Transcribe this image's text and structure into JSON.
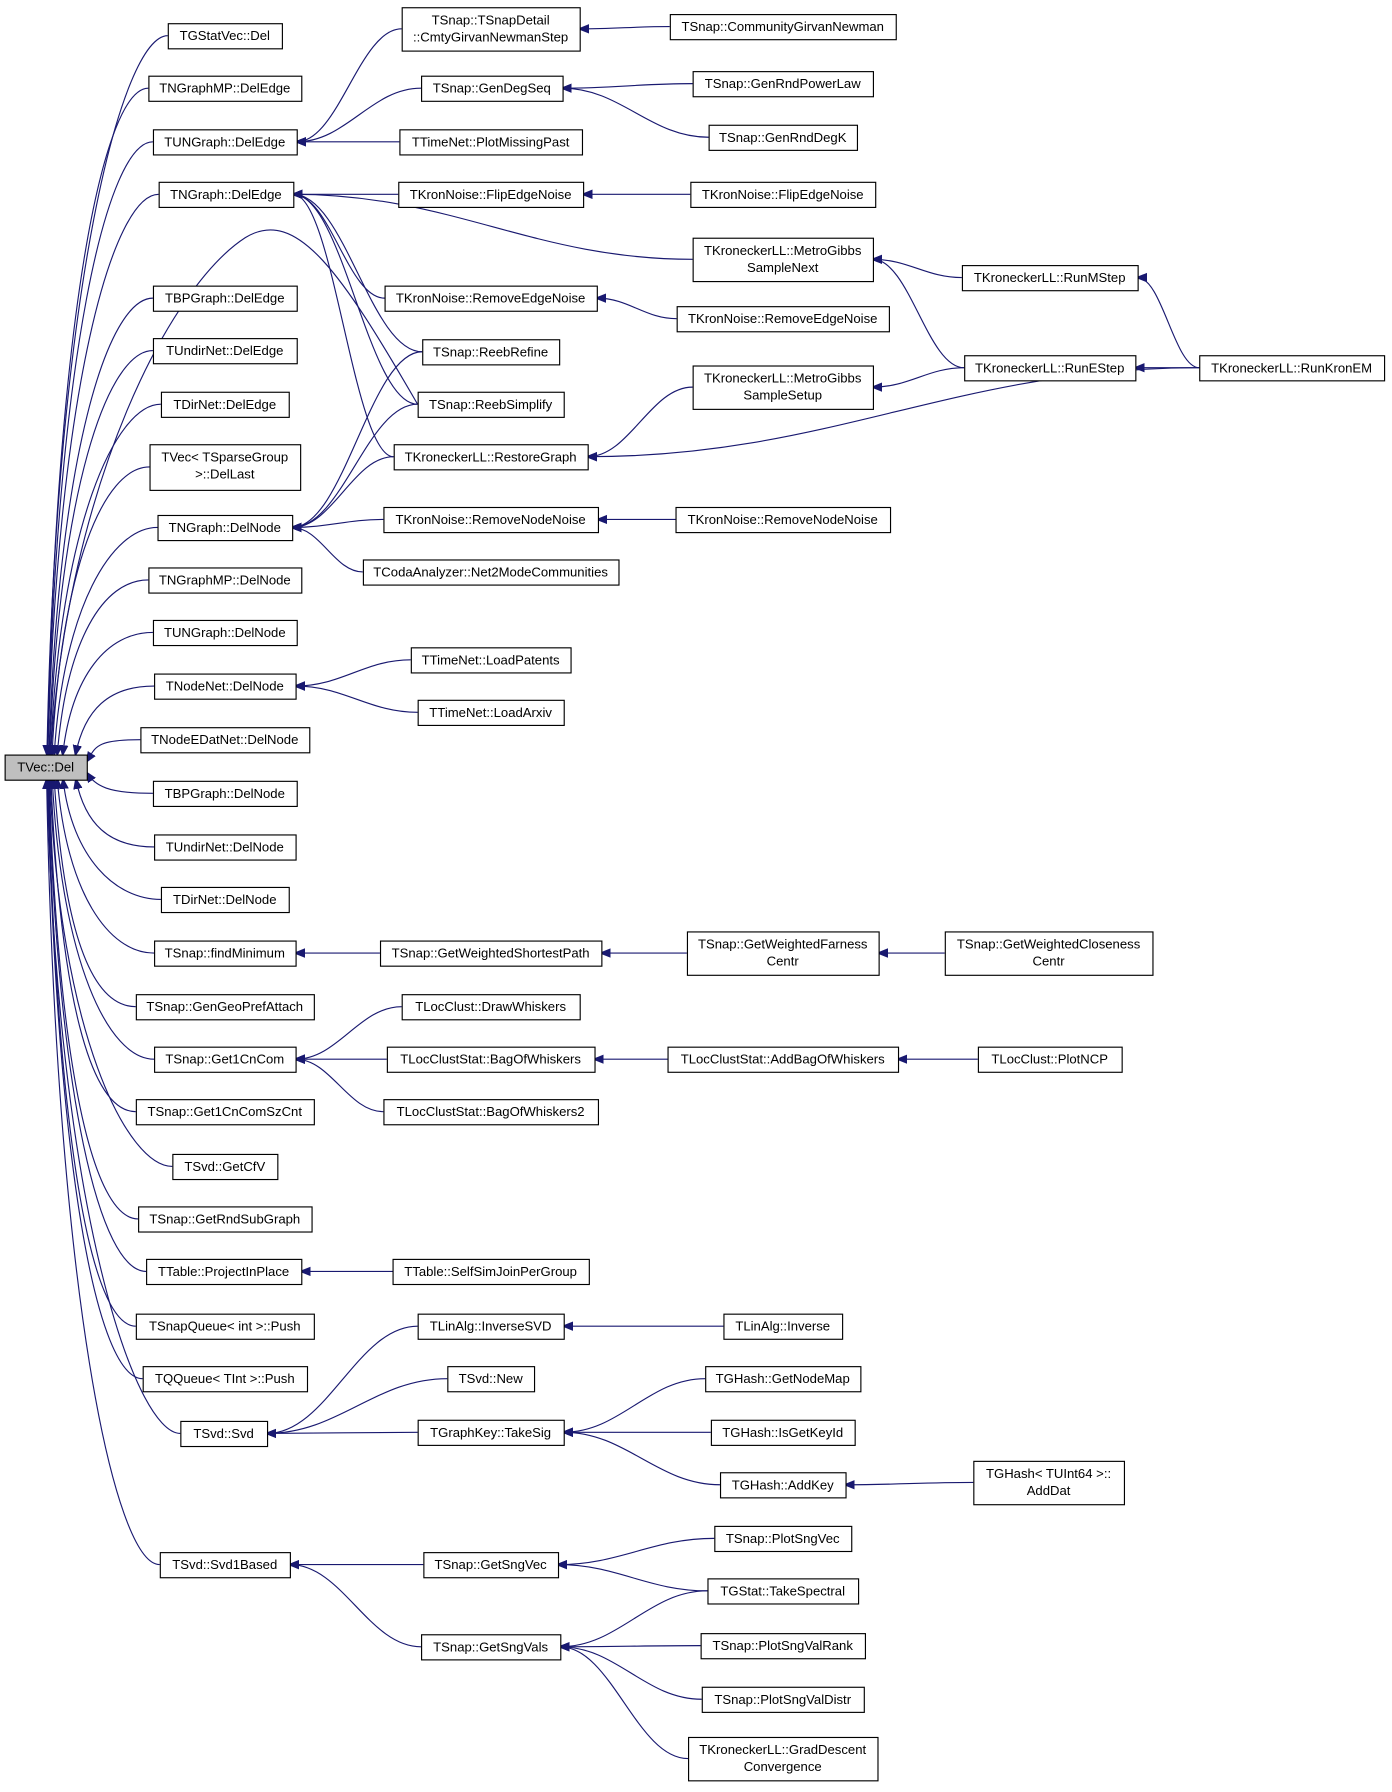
{
  "graph": {
    "focus_node": "vec_del",
    "colors": {
      "edge": "#191970",
      "focus_fill": "#bfbfbf",
      "node_fill": "#ffffff",
      "border": "#000000"
    },
    "nodes": [
      {
        "id": "vec_del",
        "lines": [
          "TVec::Del"
        ]
      },
      {
        "id": "gstatvec_del",
        "lines": [
          "TGStatVec::Del"
        ]
      },
      {
        "id": "ngraphmp_deledge",
        "lines": [
          "TNGraphMP::DelEdge"
        ]
      },
      {
        "id": "ungraph_deledge",
        "lines": [
          "TUNGraph::DelEdge"
        ]
      },
      {
        "id": "ngraph_deledge",
        "lines": [
          "TNGraph::DelEdge"
        ]
      },
      {
        "id": "bpgraph_deledge",
        "lines": [
          "TBPGraph::DelEdge"
        ]
      },
      {
        "id": "undirnet_deledge",
        "lines": [
          "TUndirNet::DelEdge"
        ]
      },
      {
        "id": "dirnet_deledge",
        "lines": [
          "TDirNet::DelEdge"
        ]
      },
      {
        "id": "vec_sparse_dellast",
        "lines": [
          "TVec< TSparseGroup",
          ">::DelLast"
        ]
      },
      {
        "id": "ngraph_delnode",
        "lines": [
          "TNGraph::DelNode"
        ]
      },
      {
        "id": "ngraphmp_delnode",
        "lines": [
          "TNGraphMP::DelNode"
        ]
      },
      {
        "id": "ungraph_delnode",
        "lines": [
          "TUNGraph::DelNode"
        ]
      },
      {
        "id": "nodenet_delnode",
        "lines": [
          "TNodeNet::DelNode"
        ]
      },
      {
        "id": "nodeedatnet_delnode",
        "lines": [
          "TNodeEDatNet::DelNode"
        ]
      },
      {
        "id": "bpgraph_delnode",
        "lines": [
          "TBPGraph::DelNode"
        ]
      },
      {
        "id": "undirnet_delnode",
        "lines": [
          "TUndirNet::DelNode"
        ]
      },
      {
        "id": "dirnet_delnode",
        "lines": [
          "TDirNet::DelNode"
        ]
      },
      {
        "id": "findminimum",
        "lines": [
          "TSnap::findMinimum"
        ]
      },
      {
        "id": "gengeoprefattach",
        "lines": [
          "TSnap::GenGeoPrefAttach"
        ]
      },
      {
        "id": "get1cncom",
        "lines": [
          "TSnap::Get1CnCom"
        ]
      },
      {
        "id": "get1cncomszcnt",
        "lines": [
          "TSnap::Get1CnComSzCnt"
        ]
      },
      {
        "id": "svd_getcfv",
        "lines": [
          "TSvd::GetCfV"
        ]
      },
      {
        "id": "getrndsubgraph",
        "lines": [
          "TSnap::GetRndSubGraph"
        ]
      },
      {
        "id": "projectinplace",
        "lines": [
          "TTable::ProjectInPlace"
        ]
      },
      {
        "id": "snapqueue_push",
        "lines": [
          "TSnapQueue< int >::Push"
        ]
      },
      {
        "id": "qqueue_push",
        "lines": [
          "TQQueue< TInt >::Push"
        ]
      },
      {
        "id": "svd_svd",
        "lines": [
          "TSvd::Svd"
        ]
      },
      {
        "id": "svd1based",
        "lines": [
          "TSvd::Svd1Based"
        ]
      },
      {
        "id": "cmtygnstep",
        "lines": [
          "TSnap::TSnapDetail",
          "::CmtyGirvanNewmanStep"
        ]
      },
      {
        "id": "gendegseq",
        "lines": [
          "TSnap::GenDegSeq"
        ]
      },
      {
        "id": "plotmissingpast",
        "lines": [
          "TTimeNet::PlotMissingPast"
        ]
      },
      {
        "id": "flipedgenoise_a",
        "lines": [
          "TKronNoise::FlipEdgeNoise"
        ]
      },
      {
        "id": "removeedgenoise_a",
        "lines": [
          "TKronNoise::RemoveEdgeNoise"
        ]
      },
      {
        "id": "reebrefine",
        "lines": [
          "TSnap::ReebRefine"
        ]
      },
      {
        "id": "reebsimplify",
        "lines": [
          "TSnap::ReebSimplify"
        ]
      },
      {
        "id": "restoregraph",
        "lines": [
          "TKroneckerLL::RestoreGraph"
        ]
      },
      {
        "id": "removenodenoise_a",
        "lines": [
          "TKronNoise::RemoveNodeNoise"
        ]
      },
      {
        "id": "net2mode",
        "lines": [
          "TCodaAnalyzer::Net2ModeCommunities"
        ]
      },
      {
        "id": "loadpatents",
        "lines": [
          "TTimeNet::LoadPatents"
        ]
      },
      {
        "id": "loadarxiv",
        "lines": [
          "TTimeNet::LoadArxiv"
        ]
      },
      {
        "id": "weightedshortestpath",
        "lines": [
          "TSnap::GetWeightedShortestPath"
        ]
      },
      {
        "id": "drawwhiskers",
        "lines": [
          "TLocClust::DrawWhiskers"
        ]
      },
      {
        "id": "bagofwhiskers",
        "lines": [
          "TLocClustStat::BagOfWhiskers"
        ]
      },
      {
        "id": "bagofwhiskers2",
        "lines": [
          "TLocClustStat::BagOfWhiskers2"
        ]
      },
      {
        "id": "selfsimjoin",
        "lines": [
          "TTable::SelfSimJoinPerGroup"
        ]
      },
      {
        "id": "inversesvd",
        "lines": [
          "TLinAlg::InverseSVD"
        ]
      },
      {
        "id": "svd_new",
        "lines": [
          "TSvd::New"
        ]
      },
      {
        "id": "takesig",
        "lines": [
          "TGraphKey::TakeSig"
        ]
      },
      {
        "id": "getsngvec",
        "lines": [
          "TSnap::GetSngVec"
        ]
      },
      {
        "id": "getsngvals",
        "lines": [
          "TSnap::GetSngVals"
        ]
      },
      {
        "id": "communitygn",
        "lines": [
          "TSnap::CommunityGirvanNewman"
        ]
      },
      {
        "id": "genrndpowerlaw",
        "lines": [
          "TSnap::GenRndPowerLaw"
        ]
      },
      {
        "id": "genrnddegk",
        "lines": [
          "TSnap::GenRndDegK"
        ]
      },
      {
        "id": "flipedgenoise_b",
        "lines": [
          "TKronNoise::FlipEdgeNoise"
        ]
      },
      {
        "id": "metrogibbsnext",
        "lines": [
          "TKroneckerLL::MetroGibbs",
          "SampleNext"
        ]
      },
      {
        "id": "removeedgenoise_b",
        "lines": [
          "TKronNoise::RemoveEdgeNoise"
        ]
      },
      {
        "id": "metrogibbssetup",
        "lines": [
          "TKroneckerLL::MetroGibbs",
          "SampleSetup"
        ]
      },
      {
        "id": "removenodenoise_b",
        "lines": [
          "TKronNoise::RemoveNodeNoise"
        ]
      },
      {
        "id": "farness",
        "lines": [
          "TSnap::GetWeightedFarness",
          "Centr"
        ]
      },
      {
        "id": "addbagofwhiskers",
        "lines": [
          "TLocClustStat::AddBagOfWhiskers"
        ]
      },
      {
        "id": "linalg_inverse",
        "lines": [
          "TLinAlg::Inverse"
        ]
      },
      {
        "id": "getnodemap",
        "lines": [
          "TGHash::GetNodeMap"
        ]
      },
      {
        "id": "isgetkeyid",
        "lines": [
          "TGHash::IsGetKeyId"
        ]
      },
      {
        "id": "addkey",
        "lines": [
          "TGHash::AddKey"
        ]
      },
      {
        "id": "plotsngvec",
        "lines": [
          "TSnap::PlotSngVec"
        ]
      },
      {
        "id": "takespectral",
        "lines": [
          "TGStat::TakeSpectral"
        ]
      },
      {
        "id": "plotsngvalrank",
        "lines": [
          "TSnap::PlotSngValRank"
        ]
      },
      {
        "id": "plotsngvaldistr",
        "lines": [
          "TSnap::PlotSngValDistr"
        ]
      },
      {
        "id": "graddescent",
        "lines": [
          "TKroneckerLL::GradDescent",
          "Convergence"
        ]
      },
      {
        "id": "runmstep",
        "lines": [
          "TKroneckerLL::RunMStep"
        ]
      },
      {
        "id": "runestep",
        "lines": [
          "TKroneckerLL::RunEStep"
        ]
      },
      {
        "id": "closeness",
        "lines": [
          "TSnap::GetWeightedCloseness",
          "Centr"
        ]
      },
      {
        "id": "plotncp",
        "lines": [
          "TLocClust::PlotNCP"
        ]
      },
      {
        "id": "addkdat",
        "lines": [
          "TGHash< TUInt64 >::",
          "AddDat"
        ]
      },
      {
        "id": "runkronem",
        "lines": [
          "TKroneckerLL::RunKronEM"
        ]
      }
    ],
    "edges": [
      [
        "gstatvec_del",
        "vec_del"
      ],
      [
        "ngraphmp_deledge",
        "vec_del"
      ],
      [
        "ungraph_deledge",
        "vec_del"
      ],
      [
        "ngraph_deledge",
        "vec_del"
      ],
      [
        "bpgraph_deledge",
        "vec_del"
      ],
      [
        "undirnet_deledge",
        "vec_del"
      ],
      [
        "dirnet_deledge",
        "vec_del"
      ],
      [
        "vec_sparse_dellast",
        "vec_del"
      ],
      [
        "ngraph_delnode",
        "vec_del"
      ],
      [
        "ngraphmp_delnode",
        "vec_del"
      ],
      [
        "ungraph_delnode",
        "vec_del"
      ],
      [
        "nodenet_delnode",
        "vec_del"
      ],
      [
        "nodeedatnet_delnode",
        "vec_del"
      ],
      [
        "bpgraph_delnode",
        "vec_del"
      ],
      [
        "undirnet_delnode",
        "vec_del"
      ],
      [
        "dirnet_delnode",
        "vec_del"
      ],
      [
        "findminimum",
        "vec_del"
      ],
      [
        "gengeoprefattach",
        "vec_del"
      ],
      [
        "get1cncom",
        "vec_del"
      ],
      [
        "get1cncomszcnt",
        "vec_del"
      ],
      [
        "svd_getcfv",
        "vec_del"
      ],
      [
        "getrndsubgraph",
        "vec_del"
      ],
      [
        "projectinplace",
        "vec_del"
      ],
      [
        "snapqueue_push",
        "vec_del"
      ],
      [
        "qqueue_push",
        "vec_del"
      ],
      [
        "svd_svd",
        "vec_del"
      ],
      [
        "svd1based",
        "vec_del"
      ],
      [
        "reebsimplify",
        "vec_del"
      ],
      [
        "cmtygnstep",
        "ungraph_deledge"
      ],
      [
        "gendegseq",
        "ungraph_deledge"
      ],
      [
        "plotmissingpast",
        "ungraph_deledge"
      ],
      [
        "communitygn",
        "cmtygnstep"
      ],
      [
        "genrndpowerlaw",
        "gendegseq"
      ],
      [
        "genrnddegk",
        "gendegseq"
      ],
      [
        "flipedgenoise_a",
        "ngraph_deledge"
      ],
      [
        "flipedgenoise_b",
        "flipedgenoise_a"
      ],
      [
        "metrogibbsnext",
        "ngraph_deledge"
      ],
      [
        "removeedgenoise_a",
        "ngraph_deledge"
      ],
      [
        "reebrefine",
        "ngraph_deledge"
      ],
      [
        "reebsimplify",
        "ngraph_deledge"
      ],
      [
        "restoregraph",
        "ngraph_deledge"
      ],
      [
        "removeedgenoise_b",
        "removeedgenoise_a"
      ],
      [
        "reebrefine",
        "ngraph_delnode"
      ],
      [
        "reebsimplify",
        "ngraph_delnode"
      ],
      [
        "restoregraph",
        "ngraph_delnode"
      ],
      [
        "removenodenoise_a",
        "ngraph_delnode"
      ],
      [
        "net2mode",
        "ngraph_delnode"
      ],
      [
        "removenodenoise_b",
        "removenodenoise_a"
      ],
      [
        "runmstep",
        "metrogibbsnext"
      ],
      [
        "runestep",
        "metrogibbsnext"
      ],
      [
        "runestep",
        "metrogibbssetup"
      ],
      [
        "runkronem",
        "runmstep"
      ],
      [
        "runkronem",
        "runestep"
      ],
      [
        "runkronem",
        "restoregraph"
      ],
      [
        "metrogibbssetup",
        "restoregraph"
      ],
      [
        "loadpatents",
        "nodenet_delnode"
      ],
      [
        "loadarxiv",
        "nodenet_delnode"
      ],
      [
        "weightedshortestpath",
        "findminimum"
      ],
      [
        "farness",
        "weightedshortestpath"
      ],
      [
        "closeness",
        "farness"
      ],
      [
        "drawwhiskers",
        "get1cncom"
      ],
      [
        "bagofwhiskers",
        "get1cncom"
      ],
      [
        "bagofwhiskers2",
        "get1cncom"
      ],
      [
        "addbagofwhiskers",
        "bagofwhiskers"
      ],
      [
        "plotncp",
        "addbagofwhiskers"
      ],
      [
        "selfsimjoin",
        "projectinplace"
      ],
      [
        "inversesvd",
        "svd_svd"
      ],
      [
        "svd_new",
        "svd_svd"
      ],
      [
        "takesig",
        "svd_svd"
      ],
      [
        "linalg_inverse",
        "inversesvd"
      ],
      [
        "getnodemap",
        "takesig"
      ],
      [
        "isgetkeyid",
        "takesig"
      ],
      [
        "addkey",
        "takesig"
      ],
      [
        "addkdat",
        "addkey"
      ],
      [
        "getsngvec",
        "svd1based"
      ],
      [
        "getsngvals",
        "svd1based"
      ],
      [
        "plotsngvec",
        "getsngvec"
      ],
      [
        "takespectral",
        "getsngvec"
      ],
      [
        "takespectral",
        "getsngvals"
      ],
      [
        "plotsngvalrank",
        "getsngvals"
      ],
      [
        "plotsngvaldistr",
        "getsngvals"
      ],
      [
        "graddescent",
        "getsngvals"
      ]
    ]
  }
}
